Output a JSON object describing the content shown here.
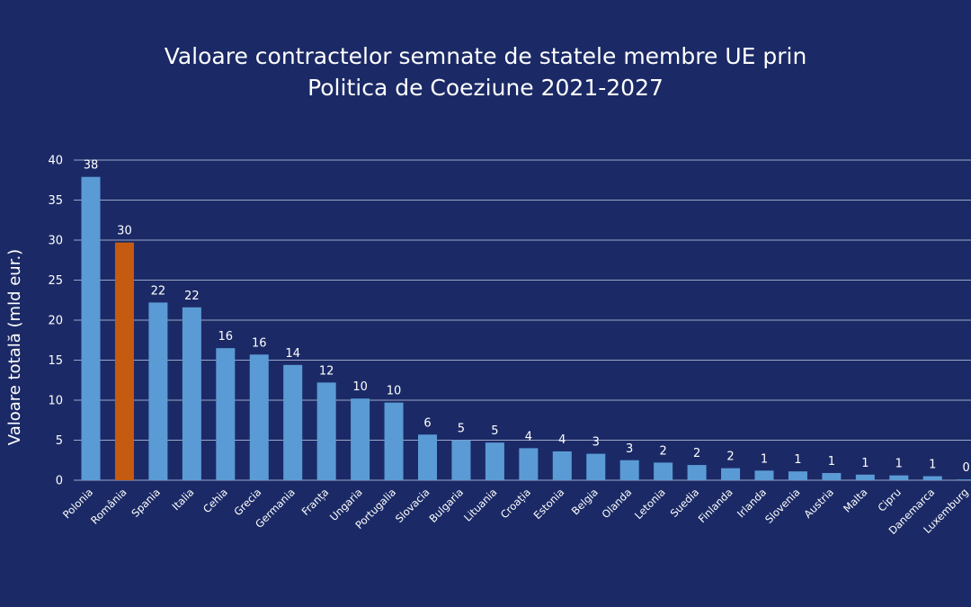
{
  "chart_data": {
    "type": "bar",
    "title_lines": [
      "Valoare contractelor semnate de statele membre UE prin",
      "Politica de Coeziune 2021-2027"
    ],
    "xlabel": "",
    "ylabel": "Valoare totală (mld eur.)",
    "ylim": [
      0,
      40
    ],
    "yticks": [
      0,
      5,
      10,
      15,
      20,
      25,
      30,
      35,
      40
    ],
    "grid": true,
    "legend": "none",
    "colors": {
      "default": "#5b9bd5",
      "highlight": "#c55a11",
      "background": "#1b2a66",
      "text": "#ffffff"
    },
    "highlight_category": "România",
    "categories": [
      "Polonia",
      "România",
      "Spania",
      "Italia",
      "Cehia",
      "Grecia",
      "Germania",
      "Franța",
      "Ungaria",
      "Portugalia",
      "Slovacia",
      "Bulgaria",
      "Lituania",
      "Croația",
      "Estonia",
      "Belgia",
      "Olanda",
      "Letonia",
      "Suedia",
      "Finlanda",
      "Irlanda",
      "Slovenia",
      "Austria",
      "Malta",
      "Cipru",
      "Danemarca",
      "Luxemburg"
    ],
    "values": [
      37.9,
      29.7,
      22.2,
      21.6,
      16.5,
      15.7,
      14.4,
      12.2,
      10.2,
      9.7,
      5.7,
      5.0,
      4.7,
      4.0,
      3.6,
      3.3,
      2.5,
      2.2,
      1.9,
      1.5,
      1.2,
      1.1,
      0.9,
      0.7,
      0.6,
      0.5,
      0.1
    ],
    "data_labels": [
      "38",
      "30",
      "22",
      "22",
      "16",
      "16",
      "14",
      "12",
      "10",
      "10",
      "6",
      "5",
      "5",
      "4",
      "4",
      "3",
      "3",
      "2",
      "2",
      "2",
      "1",
      "1",
      "1",
      "1",
      "1",
      "1",
      "0"
    ]
  }
}
